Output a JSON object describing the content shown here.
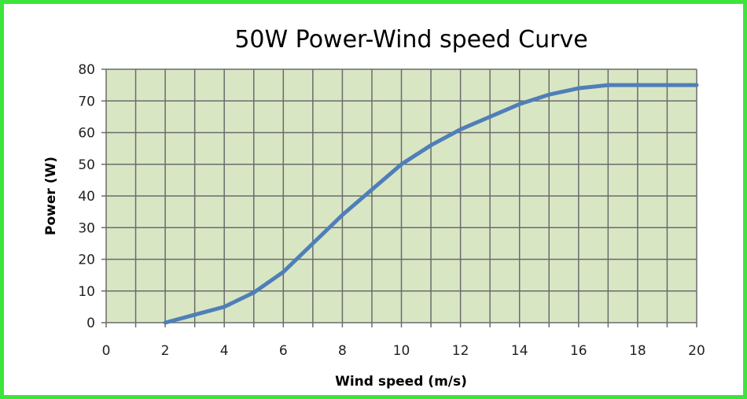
{
  "colors": {
    "frame_border": "#3ce43c",
    "plot_background": "#d9e6c4",
    "grid": "#6b6b6b",
    "series_line": "#4f7fb8"
  },
  "chart_data": {
    "type": "line",
    "title": "50W Power-Wind speed Curve",
    "xlabel": "Wind speed (m/s)",
    "ylabel": "Power (W)",
    "xlim": [
      0,
      20
    ],
    "ylim": [
      0,
      80
    ],
    "x_ticks": [
      0,
      2,
      4,
      6,
      8,
      10,
      12,
      14,
      16,
      18,
      20
    ],
    "y_ticks": [
      0,
      10,
      20,
      30,
      40,
      50,
      60,
      70,
      80
    ],
    "x_grid_step": 1,
    "grid": true,
    "legend": "none",
    "series": [
      {
        "x": [
          2,
          3,
          4,
          5,
          6,
          7,
          8,
          9,
          10,
          11,
          12,
          13,
          14,
          15,
          16,
          17,
          18,
          19,
          20
        ],
        "y": [
          0,
          2.5,
          5,
          9.5,
          16,
          25,
          34,
          42,
          50,
          56,
          61,
          65,
          69,
          72,
          74,
          75,
          75,
          75,
          75
        ]
      }
    ]
  }
}
